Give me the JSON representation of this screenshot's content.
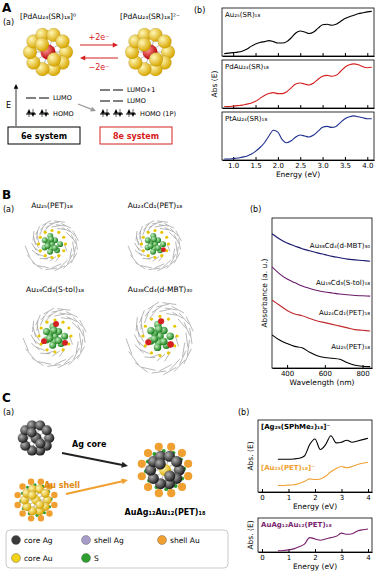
{
  "panel_labels": [
    "A",
    "B",
    "C"
  ],
  "sub_labels": [
    "(a)",
    "(b)"
  ],
  "diagram_A": {
    "left_title": "[PdAu₂₄(SR)₁₈]⁰",
    "right_title": "[PdAu₂₄(SR)₁₈]²⁻",
    "forward": "+2e⁻",
    "backward": "−2e⁻",
    "energy": "E",
    "left_levels": [
      "LUMO",
      "HOMO"
    ],
    "right_levels": [
      "LUMO+1",
      "LUMO",
      "HOMO (1P)"
    ],
    "left_system": "6e system",
    "right_system": "8e system"
  },
  "structures_B": [
    "Au₂₅(PET)₁₈",
    "Au₂₄Cd₁(PET)₁₈",
    "Au₁₉Cd₃(S-tol)₁₈",
    "Au₃₈Cd₄(d-MBT)₃₀"
  ],
  "diagram_C": {
    "core": "Ag core",
    "shell": "Au shell",
    "product": "AuAg₁₂Au₁₂(PET)₁₈",
    "legend": [
      {
        "name": "core Ag",
        "color": "#3a3a3a"
      },
      {
        "name": "shell Ag",
        "color": "#a89cc8"
      },
      {
        "name": "shell Au",
        "color": "#f0a030"
      },
      {
        "name": "core Au",
        "color": "#f2d21a"
      },
      {
        "name": "S",
        "color": "#2e9e2e"
      }
    ]
  },
  "chart_data": [
    {
      "type": "line",
      "x": [
        0.8,
        0.9,
        1.0,
        1.1,
        1.2,
        1.3,
        1.4,
        1.5,
        1.6,
        1.7,
        1.8,
        1.9,
        2.0,
        2.1,
        2.2,
        2.3,
        2.4,
        2.5,
        2.6,
        2.7,
        2.8,
        2.9,
        3.0,
        3.1,
        3.2,
        3.3,
        3.4,
        3.5,
        3.6,
        3.7,
        3.8,
        3.9,
        4.0,
        4.1
      ],
      "xlim": [
        0.75,
        4.15
      ],
      "xticks": [
        1,
        1.5,
        2,
        2.5,
        3,
        3.5,
        4
      ],
      "ylim": [
        0,
        1
      ],
      "tick_labels": false,
      "series": [
        {
          "name": "Au₂₅(SR)₁₈",
          "color": "#000000",
          "values": [
            0.05,
            0.06,
            0.07,
            0.08,
            0.1,
            0.14,
            0.2,
            0.25,
            0.28,
            0.3,
            0.32,
            0.3,
            0.27,
            0.27,
            0.3,
            0.38,
            0.48,
            0.52,
            0.5,
            0.47,
            0.5,
            0.58,
            0.65,
            0.66,
            0.64,
            0.66,
            0.72,
            0.78,
            0.82,
            0.85,
            0.88,
            0.9,
            0.92,
            0.93
          ]
        }
      ]
    },
    {
      "type": "line",
      "x": [
        0.8,
        0.9,
        1.0,
        1.1,
        1.2,
        1.3,
        1.4,
        1.5,
        1.6,
        1.7,
        1.8,
        1.9,
        2.0,
        2.1,
        2.2,
        2.3,
        2.4,
        2.5,
        2.6,
        2.7,
        2.8,
        2.9,
        3.0,
        3.1,
        3.2,
        3.3,
        3.4,
        3.5,
        3.6,
        3.7,
        3.8,
        3.9,
        4.0,
        4.1
      ],
      "xlim": [
        0.75,
        4.15
      ],
      "xticks": [
        1,
        1.5,
        2,
        2.5,
        3,
        3.5,
        4
      ],
      "ylim": [
        0,
        1
      ],
      "tick_labels": false,
      "ylabel": "Abs (E)",
      "series": [
        {
          "name": "PdAu₂₄(SR)₁₈",
          "color": "#d62020",
          "values": [
            0.03,
            0.03,
            0.04,
            0.05,
            0.06,
            0.08,
            0.1,
            0.14,
            0.2,
            0.26,
            0.3,
            0.32,
            0.3,
            0.3,
            0.34,
            0.42,
            0.5,
            0.52,
            0.5,
            0.48,
            0.52,
            0.6,
            0.66,
            0.68,
            0.66,
            0.68,
            0.76,
            0.85,
            0.9,
            0.92,
            0.9,
            0.86,
            0.84,
            0.85
          ]
        }
      ]
    },
    {
      "type": "line",
      "x": [
        0.8,
        0.9,
        1.0,
        1.1,
        1.2,
        1.3,
        1.4,
        1.5,
        1.6,
        1.7,
        1.8,
        1.9,
        2.0,
        2.1,
        2.2,
        2.3,
        2.4,
        2.5,
        2.6,
        2.7,
        2.8,
        2.9,
        3.0,
        3.1,
        3.2,
        3.3,
        3.4,
        3.5,
        3.6,
        3.7,
        3.8,
        3.9,
        4.0,
        4.1
      ],
      "xlim": [
        0.75,
        4.15
      ],
      "xticks": [
        {
          "value": 1,
          "label": "1.0"
        },
        1.5,
        {
          "value": 2,
          "label": "2.0"
        },
        2.5,
        {
          "value": 3,
          "label": "3.0"
        },
        3.5,
        {
          "value": 4,
          "label": "4.0"
        }
      ],
      "ylim": [
        0,
        1
      ],
      "tick_labels": "x",
      "xlabel": "Energy (eV)",
      "series": [
        {
          "name": "PtAu₂₄(SR)₁₈",
          "color": "#1f2f8f",
          "values": [
            0.02,
            0.02,
            0.03,
            0.04,
            0.06,
            0.08,
            0.12,
            0.18,
            0.26,
            0.36,
            0.5,
            0.62,
            0.58,
            0.42,
            0.36,
            0.4,
            0.48,
            0.52,
            0.5,
            0.48,
            0.52,
            0.6,
            0.68,
            0.7,
            0.68,
            0.7,
            0.78,
            0.86,
            0.9,
            0.92,
            0.9,
            0.88,
            0.86,
            0.86
          ]
        }
      ]
    },
    {
      "type": "line",
      "x": [
        320,
        360,
        400,
        440,
        480,
        520,
        560,
        600,
        640,
        680,
        720,
        760,
        800,
        840
      ],
      "xlim": [
        320,
        850
      ],
      "xticks": [
        400,
        600,
        800
      ],
      "ylim": [
        0,
        4.3
      ],
      "tick_labels": "x",
      "xlabel": "Wavelength (nm)",
      "ylabel": "Absorbance (a. u.)",
      "series": [
        {
          "name": "Au₃₈Cd₄(d-MBT)₃₀",
          "color": "#1a1a6e",
          "values": [
            3.85,
            3.7,
            3.58,
            3.5,
            3.42,
            3.36,
            3.3,
            3.25,
            3.2,
            3.16,
            3.12,
            3.1,
            3.08,
            3.06
          ]
        },
        {
          "name": "Au₁₉Cd₃(S-tol)₁₈",
          "color": "#6a1b6a",
          "values": [
            2.9,
            2.7,
            2.55,
            2.45,
            2.35,
            2.28,
            2.22,
            2.18,
            2.15,
            2.12,
            2.1,
            2.08,
            2.07,
            2.06
          ]
        },
        {
          "name": "Au₂₄Cd₁(PET)₁₈",
          "color": "#c0282d",
          "values": [
            1.95,
            1.8,
            1.65,
            1.55,
            1.5,
            1.42,
            1.35,
            1.3,
            1.25,
            1.2,
            1.15,
            1.1,
            1.08,
            1.06
          ]
        },
        {
          "name": "Au₂₅(PET)₁₈",
          "color": "#000000",
          "values": [
            0.95,
            0.8,
            0.7,
            0.62,
            0.58,
            0.45,
            0.35,
            0.3,
            0.28,
            0.25,
            0.15,
            0.08,
            0.05,
            0.04
          ]
        }
      ]
    },
    {
      "type": "line",
      "x": [
        0.6,
        0.8,
        1.0,
        1.2,
        1.4,
        1.6,
        1.8,
        2.0,
        2.2,
        2.4,
        2.6,
        2.8,
        3.0,
        3.2,
        3.4,
        3.6,
        3.8,
        4.0
      ],
      "xlim": [
        -0.15,
        4.15
      ],
      "xticks": [
        0,
        1,
        2,
        3,
        4
      ],
      "ylim": [
        0,
        2.2
      ],
      "tick_labels": "x",
      "xlabel": "Energy (eV)",
      "ylabel": "Abs. (E)",
      "series": [
        {
          "name": "[Ag₂₅(SPhMe₂)₁₈]⁻",
          "color": "#000000",
          "values": [
            1.0,
            1.0,
            1.0,
            1.01,
            1.03,
            1.1,
            1.45,
            1.62,
            1.3,
            1.45,
            1.72,
            1.5,
            1.52,
            1.58,
            1.52,
            1.56,
            1.6,
            1.64
          ]
        },
        {
          "name": "[Au₂₅(PET)₁₈]⁻",
          "color": "#f0a030",
          "values": [
            0.2,
            0.2,
            0.21,
            0.22,
            0.26,
            0.32,
            0.4,
            0.38,
            0.4,
            0.48,
            0.62,
            0.72,
            0.78,
            0.74,
            0.78,
            0.84,
            0.88,
            0.9
          ]
        }
      ]
    },
    {
      "type": "line",
      "x": [
        0.6,
        0.8,
        1.0,
        1.2,
        1.4,
        1.6,
        1.8,
        2.0,
        2.2,
        2.4,
        2.6,
        2.8,
        3.0,
        3.2,
        3.4,
        3.6,
        3.8,
        4.0
      ],
      "xlim": [
        -0.15,
        4.15
      ],
      "xticks": [
        0,
        1,
        2,
        3,
        4
      ],
      "ylim": [
        0,
        1.3
      ],
      "tick_labels": "x",
      "xlabel": "Energy (eV)",
      "ylabel": "Abs. (E)",
      "series": [
        {
          "name": "AuAg₁₂Au₁₂(PET)₁₈",
          "color": "#7a1f6e",
          "values": [
            0.05,
            0.06,
            0.08,
            0.12,
            0.2,
            0.3,
            0.55,
            0.5,
            0.45,
            0.5,
            0.55,
            0.6,
            0.72,
            0.68,
            0.7,
            0.8,
            0.85,
            0.88
          ]
        }
      ]
    }
  ]
}
